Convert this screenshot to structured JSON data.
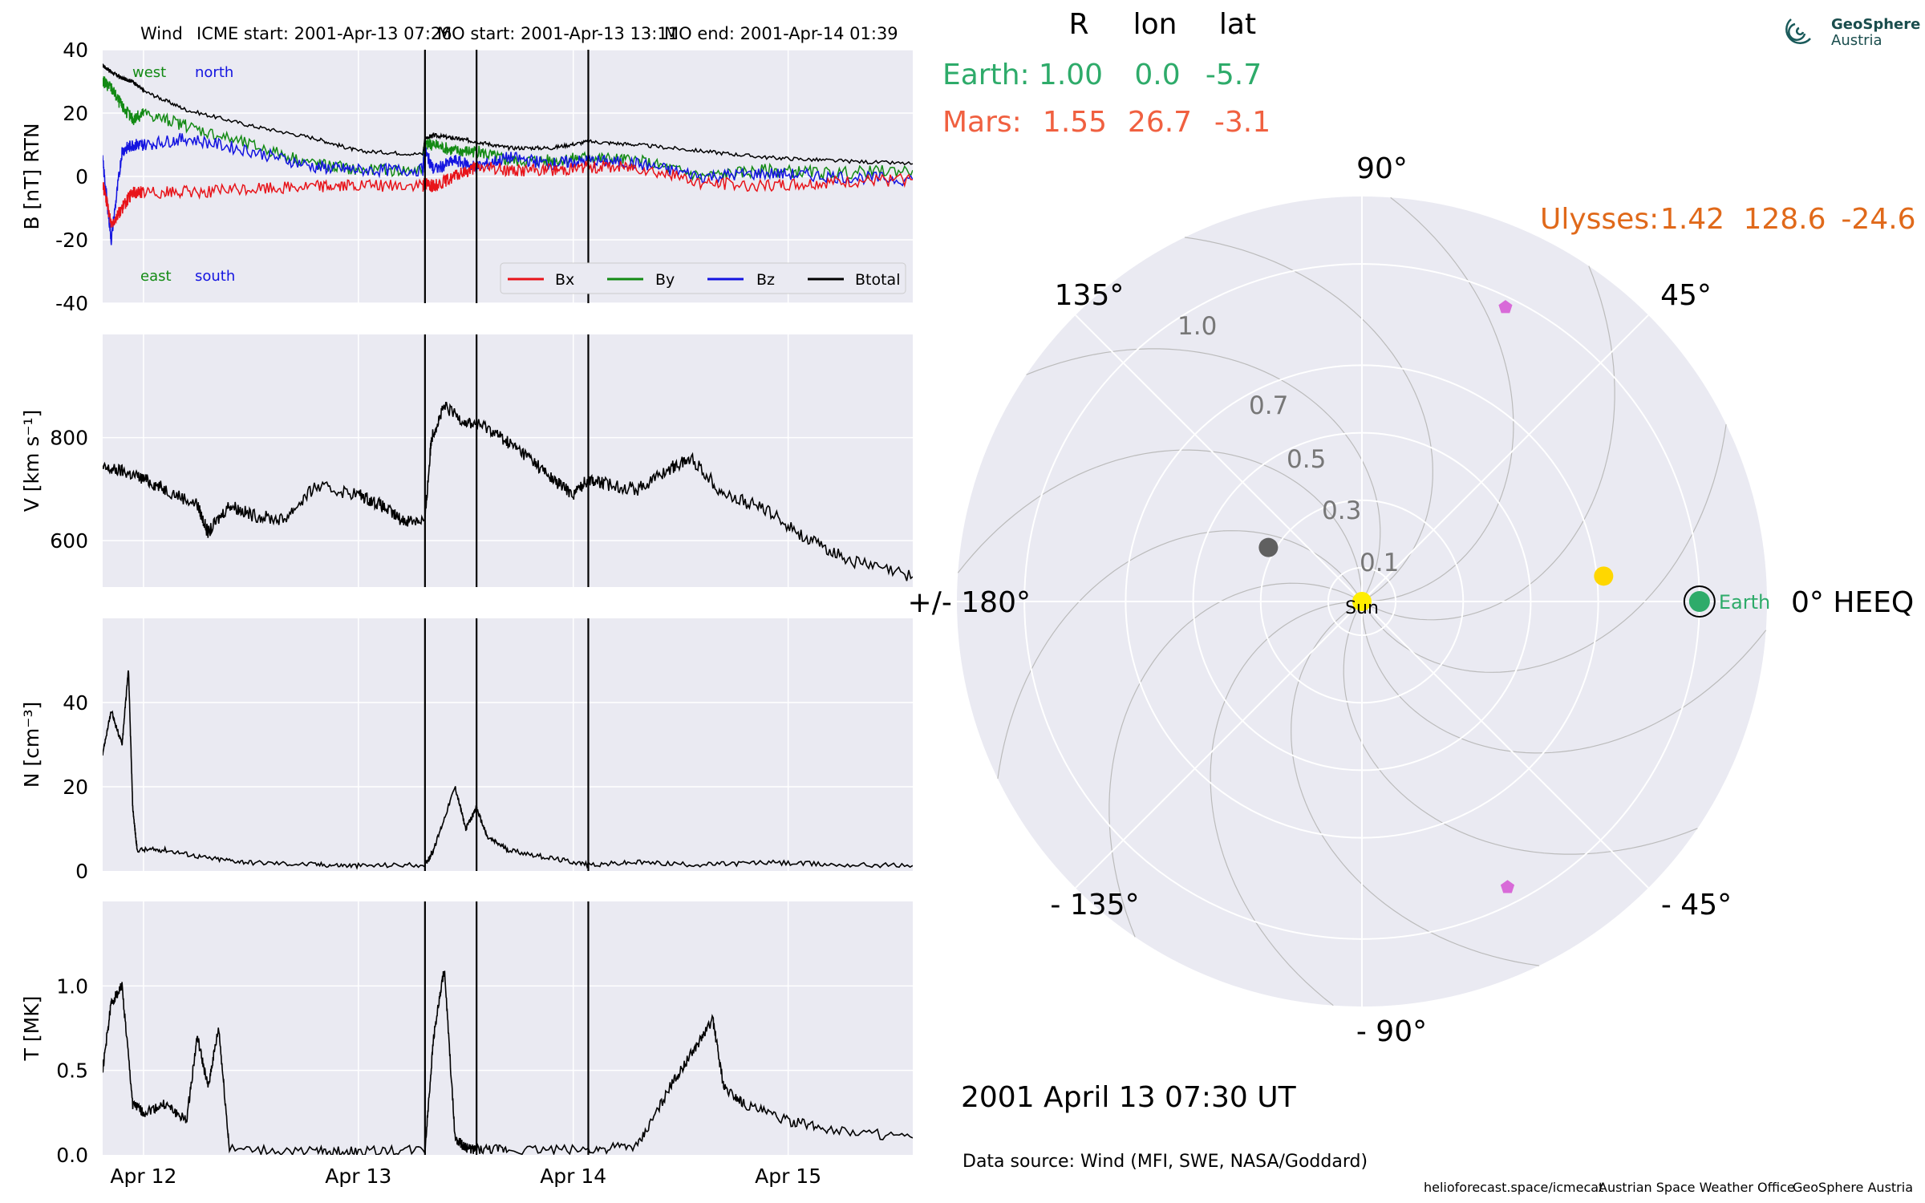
{
  "header": {
    "spacecraft": "Wind",
    "icme_start": "ICME start: 2001-Apr-13 07:26",
    "mo_start": "MO start: 2001-Apr-13 13:11",
    "mo_end": "MO end: 2001-Apr-14 01:39"
  },
  "info_table": {
    "cols": [
      "R",
      "lon",
      "lat"
    ],
    "earth": {
      "name": "Earth:",
      "R": "1.00",
      "lon": "0.0",
      "lat": "-5.7",
      "color": "#2eab6a"
    },
    "mars": {
      "name": "Mars:",
      "R": "1.55",
      "lon": "26.7",
      "lat": "-3.1",
      "color": "#f06040"
    },
    "ulysses": {
      "name": "Ulysses:",
      "R": "1.42",
      "lon": "128.6",
      "lat": "-24.6",
      "color": "#e0691a"
    }
  },
  "date_text": "2001 April 13  07:30 UT",
  "data_source": "Data source: Wind (MFI, SWE, NASA/Goddard)",
  "footer": {
    "a": "helioforecast.space/icmecat",
    "b": "Austrian Space Weather Office",
    "c": "GeoSphere Austria"
  },
  "logo": {
    "line1": "GeoSphere",
    "line2": "Austria"
  },
  "chart_data": [
    {
      "type": "line",
      "ylabel": "B [nT] RTN",
      "ylim": [
        -40,
        40
      ],
      "yticks": [
        40,
        20,
        0,
        -20,
        -40
      ],
      "xlim_days": [
        11.81,
        15.58
      ],
      "xticks": [
        "Apr 12",
        "Apr 13",
        "Apr 14",
        "Apr 15"
      ],
      "xtick_days": [
        12,
        13,
        14,
        15
      ],
      "events_days": [
        13.31,
        13.55,
        14.07
      ],
      "corner_labels": {
        "west": "west",
        "north": "north",
        "east": "east",
        "south": "south"
      },
      "legend": [
        "Bx",
        "By",
        "Bz",
        "Btotal"
      ],
      "colors": {
        "Bx": "#e8141a",
        "By": "#138a14",
        "Bz": "#1414e0",
        "Btotal": "#000000"
      },
      "series_days": [
        11.81,
        11.85,
        11.9,
        11.95,
        12.0,
        12.2,
        12.5,
        12.8,
        13.0,
        13.3,
        13.31,
        13.35,
        13.45,
        13.55,
        13.7,
        13.9,
        14.07,
        14.3,
        14.6,
        14.9,
        15.2,
        15.58
      ],
      "Btotal": [
        35,
        33,
        31,
        30,
        27,
        21,
        16,
        12,
        8,
        7,
        12,
        13,
        12,
        11,
        9,
        9,
        11,
        10,
        8,
        6,
        5,
        4
      ],
      "Bx": [
        -2,
        -15,
        -10,
        -5,
        -5,
        -5,
        -4,
        -3,
        -3,
        -3,
        -2,
        -3,
        0,
        3,
        2,
        2,
        3,
        3,
        -2,
        -3,
        -2,
        -1
      ],
      "By": [
        30,
        28,
        22,
        18,
        20,
        16,
        10,
        4,
        2,
        2,
        10,
        10,
        8,
        8,
        5,
        5,
        6,
        5,
        0,
        2,
        1,
        2
      ],
      "Bz": [
        5,
        -20,
        8,
        10,
        10,
        12,
        8,
        3,
        2,
        2,
        8,
        2,
        5,
        3,
        6,
        4,
        5,
        4,
        0,
        1,
        0,
        -1
      ]
    },
    {
      "type": "line",
      "ylabel": "V [km s⁻¹]",
      "yticks": [
        800,
        600
      ],
      "ylim": [
        510,
        1000
      ],
      "series_days": [
        11.81,
        11.9,
        12.0,
        12.1,
        12.25,
        12.3,
        12.4,
        12.5,
        12.65,
        12.8,
        13.0,
        13.1,
        13.2,
        13.31,
        13.34,
        13.4,
        13.5,
        13.6,
        13.7,
        13.8,
        13.9,
        14.0,
        14.07,
        14.15,
        14.3,
        14.45,
        14.55,
        14.7,
        14.9,
        15.1,
        15.3,
        15.58
      ],
      "values": [
        740,
        735,
        720,
        700,
        670,
        615,
        670,
        650,
        640,
        705,
        690,
        670,
        640,
        640,
        800,
        860,
        830,
        820,
        790,
        760,
        720,
        690,
        720,
        710,
        700,
        740,
        760,
        690,
        660,
        600,
        560,
        530
      ]
    },
    {
      "type": "line",
      "ylabel": "N [cm⁻³]",
      "yticks": [
        40,
        20,
        0
      ],
      "ylim": [
        0,
        60
      ],
      "series_days": [
        11.81,
        11.85,
        11.9,
        11.93,
        11.95,
        11.97,
        12.1,
        12.3,
        12.5,
        12.8,
        13.0,
        13.31,
        13.35,
        13.45,
        13.5,
        13.55,
        13.6,
        13.7,
        13.9,
        14.07,
        14.3,
        14.6,
        14.9,
        15.2,
        15.58
      ],
      "values": [
        28,
        38,
        30,
        48,
        15,
        5,
        5,
        3,
        2,
        1.5,
        1.2,
        1.5,
        5,
        20,
        10,
        15,
        8,
        5,
        3,
        1.5,
        2,
        1.5,
        2,
        1.5,
        1.3
      ]
    },
    {
      "type": "line",
      "ylabel": "T [MK]",
      "yticks": [
        1.0,
        0.5,
        0.0
      ],
      "ylim": [
        0,
        1.5
      ],
      "series_days": [
        11.81,
        11.85,
        11.9,
        11.95,
        12.0,
        12.1,
        12.2,
        12.25,
        12.3,
        12.35,
        12.4,
        12.8,
        13.0,
        13.31,
        13.35,
        13.4,
        13.45,
        13.5,
        13.55,
        13.7,
        14.07,
        14.3,
        14.45,
        14.55,
        14.65,
        14.7,
        14.8,
        15.0,
        15.2,
        15.58
      ],
      "values": [
        0.5,
        0.9,
        1.0,
        0.3,
        0.25,
        0.3,
        0.2,
        0.7,
        0.4,
        0.75,
        0.03,
        0.02,
        0.02,
        0.03,
        0.7,
        1.1,
        0.1,
        0.04,
        0.03,
        0.03,
        0.03,
        0.05,
        0.4,
        0.6,
        0.8,
        0.4,
        0.3,
        0.2,
        0.15,
        0.1
      ]
    },
    {
      "type": "scatter",
      "title_label": "0° HEEQ",
      "angle_labels": [
        "90°",
        "45°",
        "0° HEEQ",
        "- 45°",
        "- 90°",
        "- 135°",
        "+/- 180°",
        "135°"
      ],
      "r_labels": [
        "0.1",
        "0.3",
        "0.5",
        "0.7",
        "1.0"
      ],
      "r_values": [
        0.1,
        0.3,
        0.5,
        0.7,
        1.0
      ],
      "bodies": [
        {
          "name": "Sun",
          "r": 0.0,
          "lon": 0,
          "color": "#ffee00"
        },
        {
          "name": "Earth",
          "r": 1.0,
          "lon": 0.0,
          "color": "#2eab6a"
        },
        {
          "name": "",
          "r": 0.72,
          "lon": 6,
          "color": "#ffd700"
        },
        {
          "name": "",
          "r": 0.32,
          "lon": 150,
          "color": "#606060"
        },
        {
          "name": "",
          "r": 0.97,
          "lon": 64,
          "color": "#d86ad8"
        },
        {
          "name": "",
          "r": 0.95,
          "lon": -63,
          "color": "#d86ad8"
        }
      ]
    }
  ]
}
